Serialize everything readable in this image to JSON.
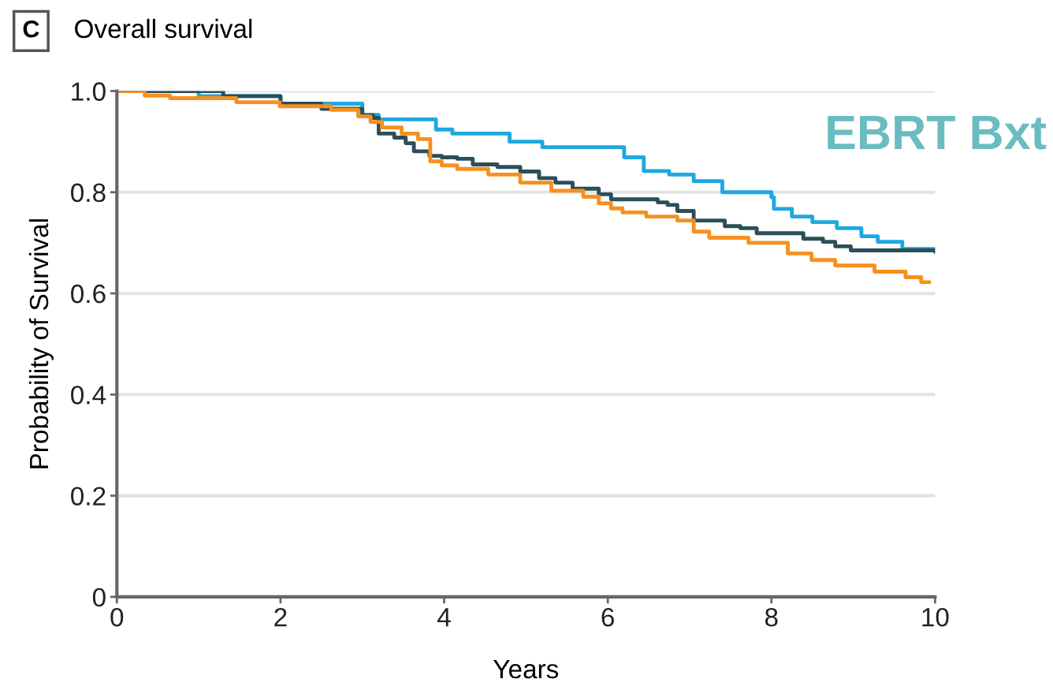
{
  "chart_data": {
    "type": "step",
    "title": "Overall survival",
    "xlabel": "Years",
    "ylabel": "Probability of Survival",
    "annotations": [
      "C",
      "EBRT Bxt"
    ],
    "xlim": [
      0,
      10
    ],
    "xticks": [
      0,
      2,
      4,
      6,
      8,
      10
    ],
    "ylim": [
      0,
      1
    ],
    "yticks": [
      0,
      0.2,
      0.4,
      0.6,
      0.8,
      {
        "value": 1,
        "label": "1.0"
      }
    ],
    "grid": "y",
    "marker": "none",
    "line_style": "solid",
    "series": [
      {
        "color": "#1ea8e0",
        "x": [
          0,
          1.0,
          2.0,
          3.0,
          3.2,
          3.9,
          4.1,
          4.8,
          5.2,
          6.2,
          6.44,
          6.75,
          7.05,
          7.4,
          8.0,
          8.03,
          8.25,
          8.5,
          8.8,
          9.1,
          9.3,
          9.6,
          10
        ],
        "values": [
          1.0,
          0.99,
          0.975,
          0.953,
          0.944,
          0.924,
          0.916,
          0.9,
          0.889,
          0.869,
          0.842,
          0.835,
          0.822,
          0.8,
          0.79,
          0.767,
          0.752,
          0.741,
          0.729,
          0.713,
          0.702,
          0.688,
          0.688
        ]
      },
      {
        "color": "#2a4f5a",
        "x": [
          0,
          1.2,
          1.3,
          2.0,
          2.5,
          3.0,
          3.13,
          3.2,
          3.39,
          3.53,
          3.63,
          3.82,
          3.97,
          4.16,
          4.35,
          4.65,
          4.93,
          5.16,
          5.36,
          5.57,
          5.89,
          6.04,
          6.61,
          6.73,
          6.85,
          7.05,
          7.43,
          7.62,
          7.82,
          8.39,
          8.63,
          8.78,
          8.97,
          10
        ],
        "values": [
          1.0,
          1.0,
          0.99,
          0.975,
          0.965,
          0.952,
          0.947,
          0.916,
          0.908,
          0.897,
          0.881,
          0.872,
          0.869,
          0.866,
          0.855,
          0.85,
          0.841,
          0.828,
          0.819,
          0.807,
          0.796,
          0.786,
          0.78,
          0.775,
          0.763,
          0.744,
          0.733,
          0.729,
          0.719,
          0.708,
          0.702,
          0.693,
          0.685,
          0.682
        ]
      },
      {
        "color": "#f7901e",
        "x": [
          0,
          0.34,
          0.65,
          1.46,
          1.99,
          2.62,
          2.95,
          3.1,
          3.24,
          3.48,
          3.68,
          3.83,
          3.97,
          4.16,
          4.54,
          4.93,
          5.31,
          5.7,
          5.89,
          6.04,
          6.18,
          6.47,
          6.85,
          7.05,
          7.24,
          7.72,
          8.2,
          8.49,
          8.78,
          9.26,
          9.64,
          9.83,
          9.93
        ],
        "values": [
          1.0,
          0.991,
          0.986,
          0.978,
          0.97,
          0.963,
          0.95,
          0.939,
          0.928,
          0.916,
          0.905,
          0.861,
          0.853,
          0.846,
          0.835,
          0.819,
          0.803,
          0.791,
          0.778,
          0.768,
          0.76,
          0.752,
          0.744,
          0.722,
          0.71,
          0.7,
          0.679,
          0.666,
          0.655,
          0.643,
          0.632,
          0.622,
          0.622
        ]
      }
    ]
  }
}
